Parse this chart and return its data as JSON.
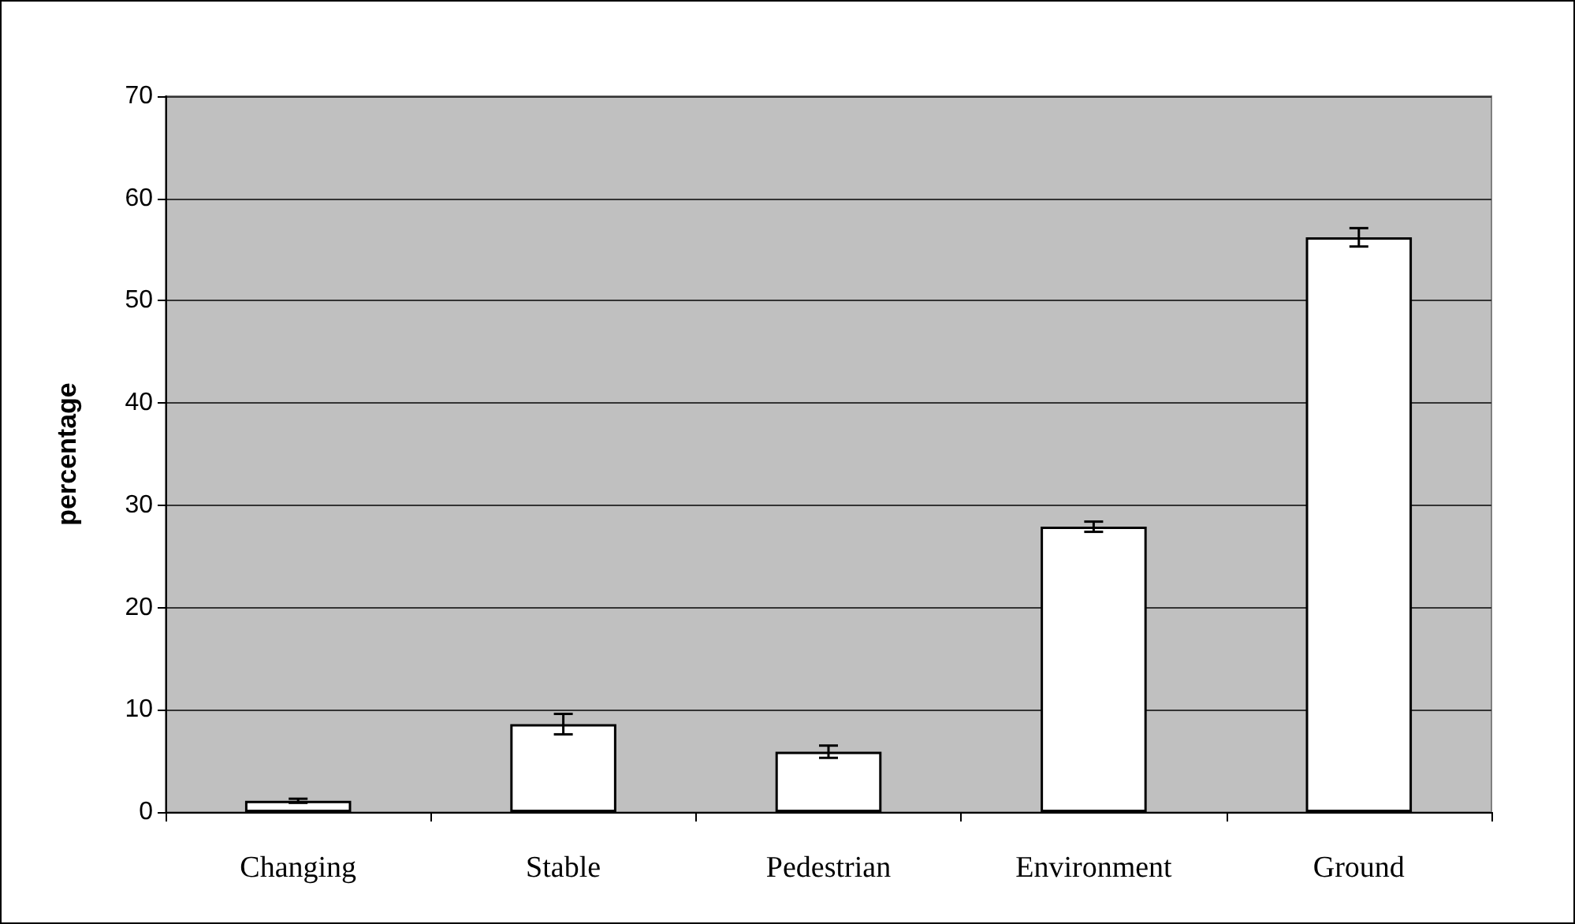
{
  "chart_data": {
    "type": "bar",
    "ylabel": "percentage",
    "categories": [
      "Changing",
      "Stable",
      "Pedestrian",
      "Environment",
      "Ground"
    ],
    "values": [
      1.1,
      8.6,
      5.9,
      27.9,
      56.2
    ],
    "errors": [
      0.2,
      1.0,
      0.6,
      0.5,
      0.9
    ],
    "color": "#ffffff",
    "ylim": [
      0,
      70
    ],
    "yticks": [
      0,
      10,
      20,
      30,
      40,
      50,
      60,
      70
    ],
    "grid": "y"
  }
}
